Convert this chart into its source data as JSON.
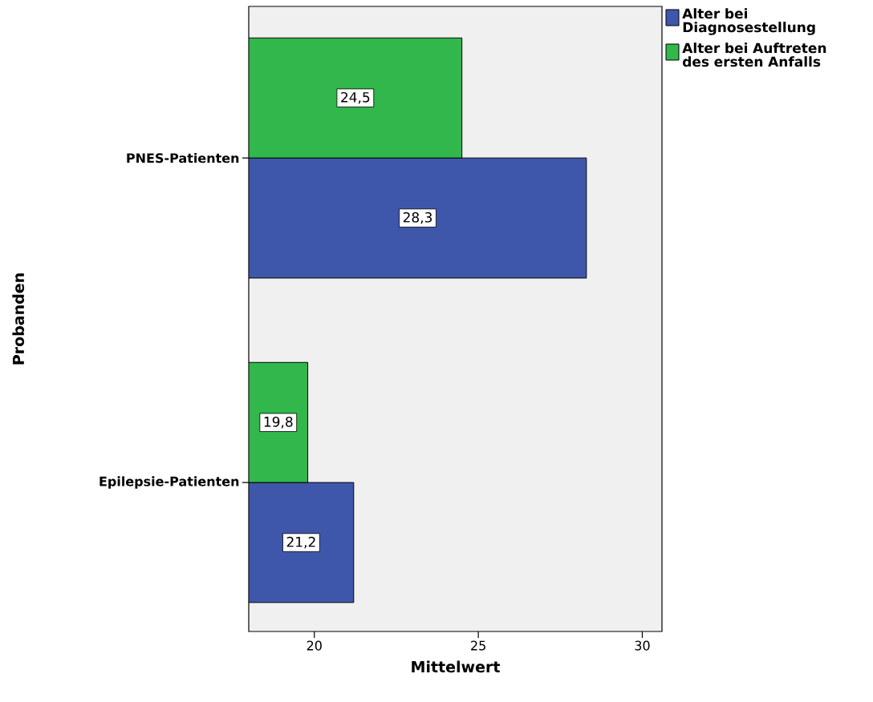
{
  "chart_data": {
    "type": "bar",
    "orientation": "horizontal",
    "xlabel": "Mittelwert",
    "ylabel": "Probanden",
    "categories": [
      "PNES-Patienten",
      "Epilepsie-Patienten"
    ],
    "series": [
      {
        "name": "Alter bei Diagnosestellung",
        "color": "#3e57ab",
        "values": [
          28.3,
          21.2
        ],
        "value_labels": [
          "28,3",
          "21,2"
        ]
      },
      {
        "name": "Alter bei Auftreten des ersten Anfalls",
        "color": "#31b74b",
        "values": [
          24.5,
          19.8
        ],
        "value_labels": [
          "24,5",
          "19,8"
        ]
      }
    ],
    "xlim": [
      18,
      30.6
    ],
    "xticks": [
      20,
      25,
      30
    ],
    "legend": "top right",
    "grid": false
  }
}
